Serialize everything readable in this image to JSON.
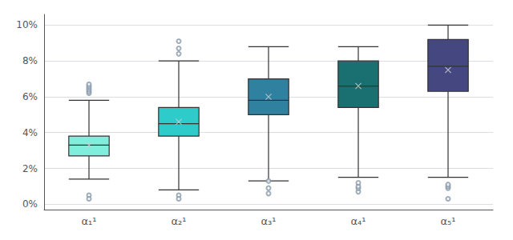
{
  "chart_data": {
    "type": "box",
    "categories": [
      "α₁¹",
      "α₂¹",
      "α₃¹",
      "α₄¹",
      "α₅¹"
    ],
    "colors": [
      "#7FEEDD",
      "#2ECBCB",
      "#3080A0",
      "#1A7070",
      "#454880"
    ],
    "boxes": [
      {
        "q1": 0.027,
        "median": 0.033,
        "q3": 0.038,
        "mean": 0.033,
        "whisker_low": 0.014,
        "whisker_high": 0.058,
        "fliers_low": [
          0.005,
          0.003
        ],
        "fliers_high": [
          0.062,
          0.063,
          0.064,
          0.065,
          0.066,
          0.067
        ]
      },
      {
        "q1": 0.038,
        "median": 0.045,
        "q3": 0.054,
        "mean": 0.046,
        "whisker_low": 0.008,
        "whisker_high": 0.08,
        "fliers_low": [
          0.005,
          0.003
        ],
        "fliers_high": [
          0.084,
          0.087,
          0.091
        ]
      },
      {
        "q1": 0.05,
        "median": 0.058,
        "q3": 0.07,
        "mean": 0.06,
        "whisker_low": 0.013,
        "whisker_high": 0.088,
        "fliers_low": [
          0.006,
          0.009,
          0.013
        ],
        "fliers_high": []
      },
      {
        "q1": 0.054,
        "median": 0.066,
        "q3": 0.08,
        "mean": 0.066,
        "whisker_low": 0.015,
        "whisker_high": 0.088,
        "fliers_low": [
          0.007,
          0.009,
          0.01,
          0.012
        ],
        "fliers_high": []
      },
      {
        "q1": 0.063,
        "median": 0.077,
        "q3": 0.092,
        "mean": 0.075,
        "whisker_low": 0.015,
        "whisker_high": 0.1,
        "fliers_low": [
          0.003,
          0.009,
          0.01,
          0.011
        ],
        "fliers_high": []
      }
    ],
    "ylim": [
      -0.003,
      0.106
    ],
    "yticks": [
      {
        "value": 0.0,
        "label": "0%"
      },
      {
        "value": 0.02,
        "label": "2%"
      },
      {
        "value": 0.04,
        "label": "4%"
      },
      {
        "value": 0.06,
        "label": "6%"
      },
      {
        "value": 0.08,
        "label": "8%"
      },
      {
        "value": 0.1,
        "label": "10%"
      }
    ],
    "grid": true
  }
}
